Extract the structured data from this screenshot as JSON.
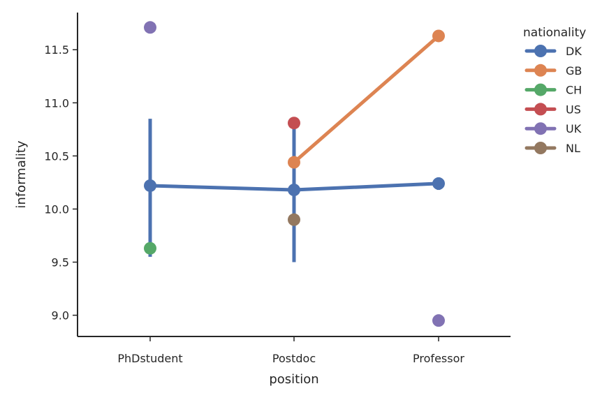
{
  "chart_data": {
    "type": "point",
    "xlabel": "position",
    "ylabel": "informality",
    "categories": [
      "PhDstudent",
      "Postdoc",
      "Professor"
    ],
    "ylim": [
      8.8,
      11.85
    ],
    "yticks": [
      9.0,
      9.5,
      10.0,
      10.5,
      11.0,
      11.5
    ],
    "ytick_labels": [
      "9.0",
      "9.5",
      "10.0",
      "10.5",
      "11.0",
      "11.5"
    ],
    "grid": false,
    "legend": {
      "title": "nationality",
      "placement": "right"
    },
    "series": [
      {
        "name": "DK",
        "color": "#4c72b0",
        "values": [
          10.22,
          10.18,
          10.24
        ],
        "ci": [
          [
            9.55,
            10.85
          ],
          [
            9.5,
            10.8
          ],
          [
            10.18,
            10.29
          ]
        ]
      },
      {
        "name": "GB",
        "color": "#dd8452",
        "values": [
          null,
          10.44,
          11.63
        ],
        "ci": [
          null,
          null,
          null
        ]
      },
      {
        "name": "CH",
        "color": "#55a868",
        "values": [
          9.63,
          null,
          null
        ],
        "ci": [
          null,
          null,
          null
        ]
      },
      {
        "name": "US",
        "color": "#c44e52",
        "values": [
          null,
          10.81,
          null
        ],
        "ci": [
          null,
          null,
          null
        ]
      },
      {
        "name": "UK",
        "color": "#8172b3",
        "values": [
          11.71,
          null,
          8.95
        ],
        "ci": [
          null,
          null,
          null
        ]
      },
      {
        "name": "NL",
        "color": "#937860",
        "values": [
          null,
          9.9,
          null
        ],
        "ci": [
          null,
          null,
          null
        ]
      }
    ]
  }
}
